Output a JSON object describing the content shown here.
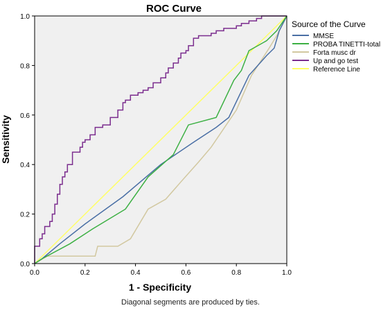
{
  "chart_data": {
    "type": "line",
    "title": "ROC Curve",
    "xlabel": "1 - Specificity",
    "ylabel": "Sensitivity",
    "xlim": [
      0,
      1
    ],
    "ylim": [
      0,
      1
    ],
    "xticks": [
      "0.0",
      "0.2",
      "0.4",
      "0.6",
      "0.8",
      "1.0"
    ],
    "yticks": [
      "0.0",
      "0.2",
      "0.4",
      "0.6",
      "0.8",
      "1.0"
    ],
    "grid": false,
    "legend_title": "Source of the Curve",
    "legend_position": "right",
    "plot_background": "#f0f0f0",
    "footnote": "Diagonal segments are produced by ties.",
    "series": [
      {
        "name": "MMSE",
        "color": "#4a6fa5",
        "x": [
          0,
          0.03,
          0.1,
          0.2,
          0.35,
          0.5,
          0.63,
          0.72,
          0.77,
          0.85,
          0.92,
          0.95,
          0.97,
          1
        ],
        "y": [
          0,
          0.02,
          0.08,
          0.16,
          0.27,
          0.4,
          0.49,
          0.55,
          0.59,
          0.76,
          0.84,
          0.87,
          0.94,
          1
        ]
      },
      {
        "name": "PROBA TINETTI-total",
        "color": "#3cb043",
        "x": [
          0,
          0.03,
          0.14,
          0.23,
          0.36,
          0.45,
          0.55,
          0.61,
          0.72,
          0.79,
          0.82,
          0.85,
          0.92,
          0.96,
          1
        ],
        "y": [
          0,
          0.02,
          0.08,
          0.14,
          0.22,
          0.35,
          0.44,
          0.56,
          0.59,
          0.74,
          0.78,
          0.86,
          0.9,
          0.94,
          1
        ]
      },
      {
        "name": "Forta musc dr",
        "color": "#d2c8a0",
        "x": [
          0,
          0.05,
          0.24,
          0.25,
          0.33,
          0.38,
          0.45,
          0.52,
          0.58,
          0.65,
          0.7,
          0.8,
          0.86,
          0.93,
          0.96,
          1
        ],
        "y": [
          0,
          0.03,
          0.03,
          0.07,
          0.07,
          0.1,
          0.22,
          0.26,
          0.33,
          0.41,
          0.47,
          0.62,
          0.76,
          0.87,
          0.92,
          1
        ]
      },
      {
        "name": "Up and go test",
        "color": "#7b2d8e",
        "step": true,
        "x": [
          0,
          0.02,
          0.03,
          0.04,
          0.06,
          0.07,
          0.08,
          0.09,
          0.1,
          0.11,
          0.12,
          0.13,
          0.15,
          0.18,
          0.19,
          0.2,
          0.22,
          0.24,
          0.27,
          0.3,
          0.33,
          0.35,
          0.36,
          0.38,
          0.41,
          0.43,
          0.45,
          0.47,
          0.5,
          0.52,
          0.53,
          0.55,
          0.57,
          0.58,
          0.6,
          0.61,
          0.63,
          0.65,
          0.7,
          0.72,
          0.75,
          0.8,
          0.82,
          0.85,
          0.88,
          0.9,
          0.93,
          0.97,
          1
        ],
        "y": [
          0,
          0.07,
          0.1,
          0.12,
          0.15,
          0.17,
          0.2,
          0.24,
          0.28,
          0.32,
          0.35,
          0.37,
          0.4,
          0.45,
          0.47,
          0.49,
          0.5,
          0.52,
          0.55,
          0.56,
          0.59,
          0.62,
          0.65,
          0.66,
          0.68,
          0.69,
          0.7,
          0.71,
          0.73,
          0.75,
          0.77,
          0.79,
          0.81,
          0.83,
          0.85,
          0.86,
          0.88,
          0.91,
          0.92,
          0.93,
          0.94,
          0.95,
          0.96,
          0.97,
          0.98,
          0.99,
          1,
          1,
          1
        ]
      },
      {
        "name": "Reference Line",
        "color": "#ffff66",
        "x": [
          0,
          1
        ],
        "y": [
          0,
          1
        ]
      }
    ]
  }
}
